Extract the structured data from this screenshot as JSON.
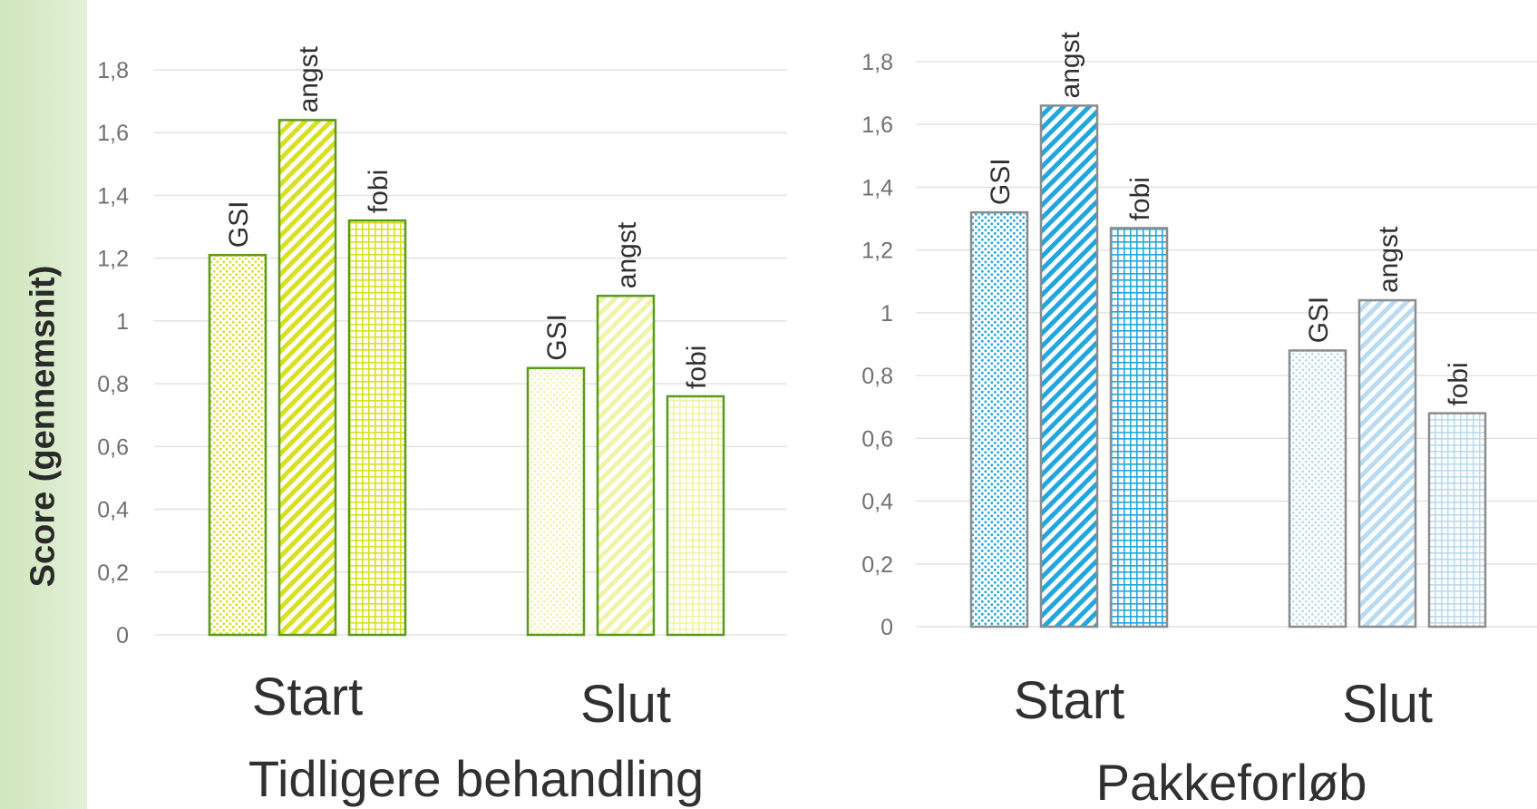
{
  "ylabel": "Score (gennemsnit)",
  "colors": {
    "green_dark": "#d9e021",
    "green_light": "#f0f3a8",
    "green_stroke": "#5a9a1a",
    "blue_dark": "#21a6e0",
    "blue_light": "#b8dbf2",
    "blue_stroke": "#8c8c8c",
    "grid": "#e3e3e3"
  },
  "chart_data": [
    {
      "type": "bar",
      "title": "Tidligere behandling",
      "categories": [
        "Start",
        "Slut"
      ],
      "bar_labels": [
        "GSI",
        "angst",
        "fobi"
      ],
      "patterns": [
        "dots",
        "diagonal",
        "grid"
      ],
      "ylim": [
        0,
        1.8
      ],
      "yticks": [
        "0",
        "0,2",
        "0,4",
        "0,6",
        "0,8",
        "1",
        "1,2",
        "1,4",
        "1,6",
        "1,8"
      ],
      "values": [
        [
          1.21,
          1.64,
          1.32
        ],
        [
          0.85,
          1.08,
          0.76
        ]
      ],
      "grid": true
    },
    {
      "type": "bar",
      "title": "Pakkeforløb",
      "categories": [
        "Start",
        "Slut"
      ],
      "bar_labels": [
        "GSI",
        "angst",
        "fobi"
      ],
      "patterns": [
        "dots",
        "diagonal",
        "grid"
      ],
      "ylim": [
        0,
        1.8
      ],
      "yticks": [
        "0",
        "0,2",
        "0,4",
        "0,6",
        "0,8",
        "1",
        "1,2",
        "1,4",
        "1,6",
        "1,8"
      ],
      "values": [
        [
          1.32,
          1.66,
          1.27
        ],
        [
          0.88,
          1.04,
          0.68
        ]
      ],
      "grid": true
    }
  ]
}
